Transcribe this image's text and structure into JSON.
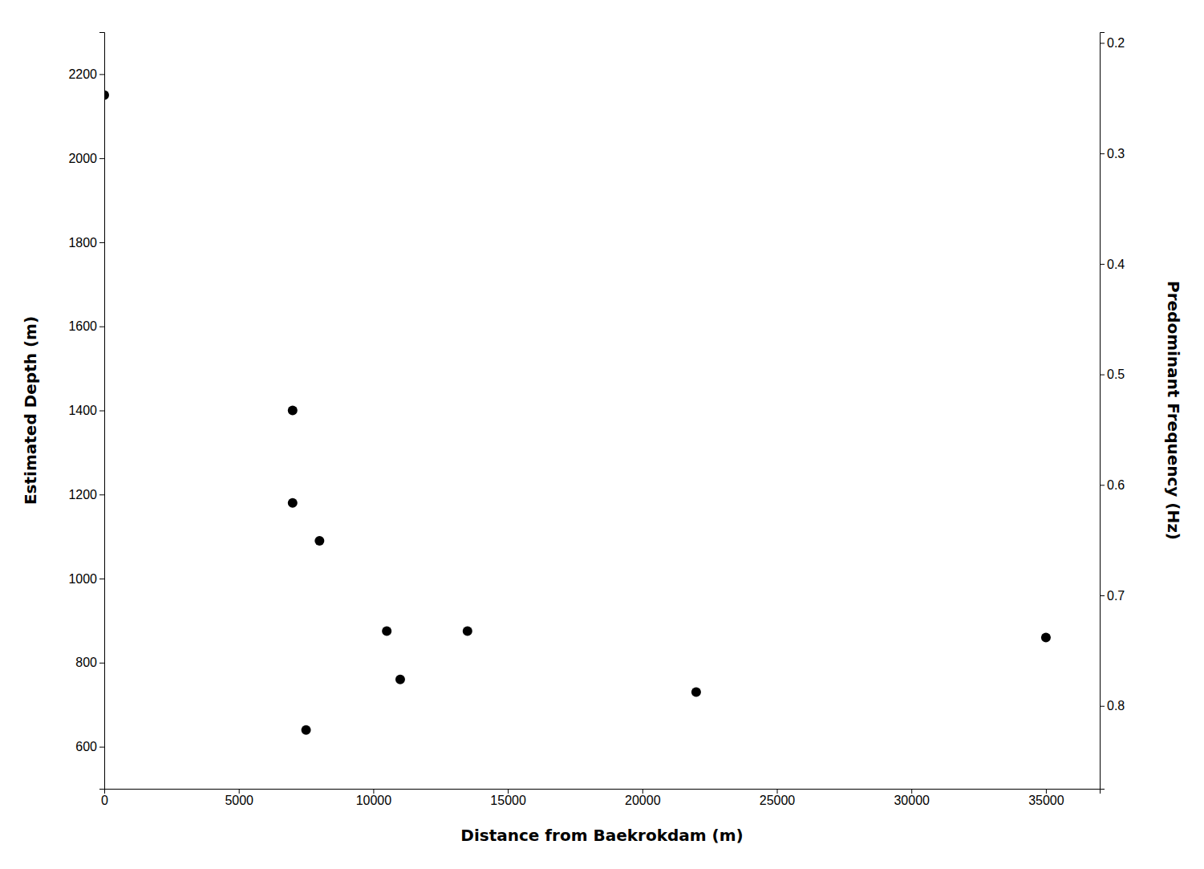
{
  "chart_data": {
    "type": "scatter",
    "x": [
      0,
      7000,
      7000,
      8000,
      7500,
      10500,
      11000,
      13500,
      22000,
      35000
    ],
    "values": [
      2150,
      1400,
      1180,
      1090,
      640,
      875,
      760,
      875,
      730,
      860
    ],
    "color": "#000000",
    "xlabel": "Distance from Baekrokdam (m)",
    "ylabel": "Estimated Depth (m)",
    "y2label": "Predominant Frequency (Hz)",
    "xlim": [
      0,
      37000
    ],
    "ylim": [
      500,
      2300
    ],
    "xticks": [
      0,
      5000,
      10000,
      15000,
      20000,
      25000,
      30000,
      35000
    ],
    "yticks": [
      600,
      800,
      1000,
      1200,
      1400,
      1600,
      1800,
      2000,
      2200
    ],
    "y2lim": [
      0.875,
      0.1902173913043478
    ],
    "y2ticks": [
      0.2,
      0.3,
      0.4,
      0.5,
      0.6,
      0.7,
      0.8
    ]
  }
}
